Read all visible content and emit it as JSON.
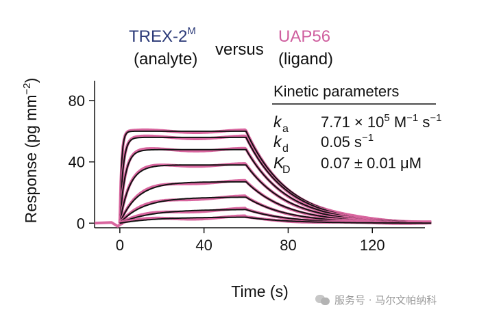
{
  "header": {
    "analyte_name": "TREX-2",
    "analyte_sup": "M",
    "analyte_role": "(analyte)",
    "versus": "versus",
    "ligand_name": "UAP56",
    "ligand_role": "(ligand)"
  },
  "kinetics": {
    "title": "Kinetic parameters",
    "rows": [
      {
        "sym": "k",
        "sub": "a",
        "value": "7.71 × 10",
        "exp": "5",
        "unit": " M",
        "unit_exp": "−1",
        "unit2": " s",
        "unit2_exp": "−1"
      },
      {
        "sym": "k",
        "sub": "d",
        "value": "0.05 s",
        "exp": "−1",
        "unit": "",
        "unit_exp": "",
        "unit2": "",
        "unit2_exp": ""
      },
      {
        "sym": "K",
        "sub": "D",
        "value": "0.07 ± 0.01 μM",
        "exp": "",
        "unit": "",
        "unit_exp": "",
        "unit2": "",
        "unit2_exp": ""
      }
    ]
  },
  "watermark": "服务号 · 马尔文帕纳科",
  "colors": {
    "data": "#d9669f",
    "fit": "#111111",
    "analyte": "#2b3a78",
    "ligand": "#cf5f9f"
  },
  "chart_data": {
    "type": "line",
    "xlabel": "Time (s)",
    "ylabel": "Response (pg mm",
    "ylabel_exp": "−2",
    "ylabel_end": ")",
    "xlim": [
      -12,
      145
    ],
    "ylim": [
      -3,
      93
    ],
    "xticks": [
      0,
      40,
      80,
      120
    ],
    "yticks": [
      0,
      40,
      80
    ],
    "association_start": 0,
    "dissociation_start": 60,
    "end_time": 148,
    "kd": 0.05,
    "series": [
      {
        "plateau": 60,
        "kobs": 1.2
      },
      {
        "plateau": 56,
        "kobs": 0.65
      },
      {
        "plateau": 48,
        "kobs": 0.4
      },
      {
        "plateau": 38,
        "kobs": 0.22
      },
      {
        "plateau": 27,
        "kobs": 0.12
      },
      {
        "plateau": 17,
        "kobs": 0.09
      },
      {
        "plateau": 9,
        "kobs": 0.07
      },
      {
        "plateau": 4,
        "kobs": 0.06
      }
    ],
    "raw_dip": {
      "x": [
        -12,
        -4,
        -1,
        0,
        1.5
      ],
      "y": [
        0,
        0.5,
        -2,
        -1,
        0
      ]
    }
  }
}
